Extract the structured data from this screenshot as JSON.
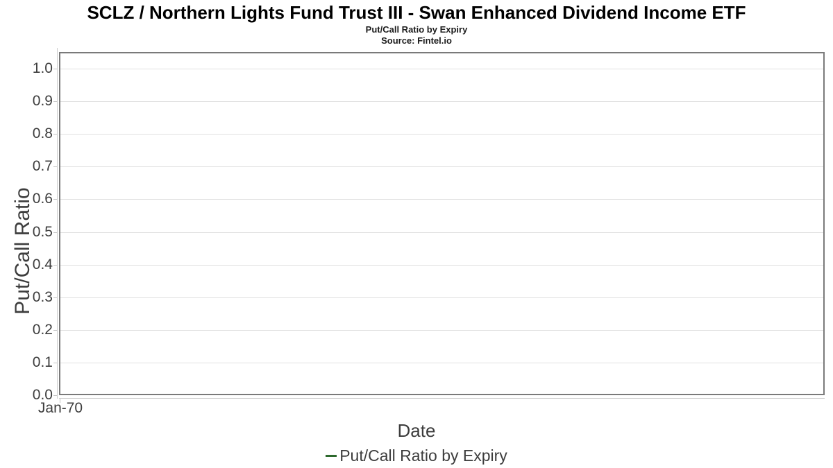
{
  "header": {
    "title": "SCLZ / Northern Lights Fund Trust III - Swan Enhanced Dividend Income ETF",
    "subtitle": "Put/Call Ratio by Expiry",
    "source": "Source: Fintel.io"
  },
  "chart_data": {
    "type": "line",
    "title": "SCLZ / Northern Lights Fund Trust III - Swan Enhanced Dividend Income ETF",
    "subtitle": "Put/Call Ratio by Expiry",
    "source": "Source: Fintel.io",
    "xlabel": "Date",
    "ylabel": "Put/Call Ratio",
    "x_tick_labels": [
      "Jan-70"
    ],
    "y_tick_labels": [
      "0.0",
      "0.1",
      "0.2",
      "0.3",
      "0.4",
      "0.5",
      "0.6",
      "0.7",
      "0.8",
      "0.9",
      "1.0"
    ],
    "ylim": [
      0.0,
      1.05
    ],
    "grid": true,
    "legend_position": "bottom-center",
    "series": [
      {
        "name": "Put/Call Ratio by Expiry",
        "color": "#2d692d",
        "x": [],
        "values": []
      }
    ]
  },
  "legend": {
    "items": [
      {
        "label": "Put/Call Ratio by Expiry",
        "color": "#2d692d"
      }
    ]
  },
  "colors": {
    "grid": "#e0e0e0",
    "plot_border": "#7a7a7a",
    "axis_spine": "#cccccc",
    "tick_text": "#3d3d3d",
    "title_text": "#000000",
    "series_green": "#2d692d"
  }
}
